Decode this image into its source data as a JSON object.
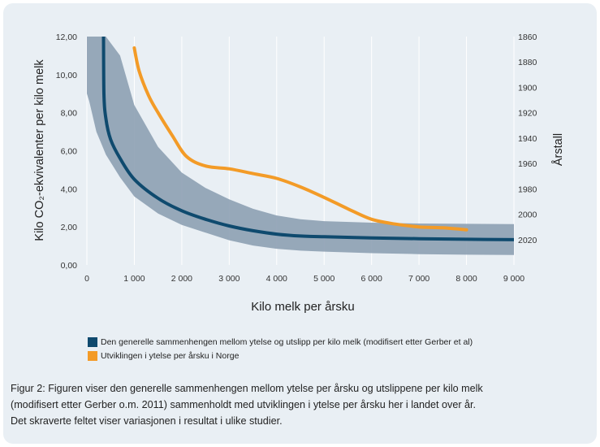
{
  "colors": {
    "band": "#8da0b2",
    "general_curve": "#0f4a6e",
    "norway_curve": "#f39b27",
    "background": "#e9eff4"
  },
  "chart_data": {
    "type": "line",
    "xlabel": "Kilo melk per årsku",
    "ylabel": "Kilo CO₂-ekvivalenter per kilo melk",
    "y2label": "Årstall",
    "xlim": [
      0,
      9000
    ],
    "ylim": [
      0,
      12
    ],
    "y2lim": [
      1860,
      2040
    ],
    "y2_reversed": true,
    "grid": "vertical",
    "x_ticks": [
      "0",
      "1 000",
      "2 000",
      "3 000",
      "4 000",
      "5 000",
      "6 000",
      "7 000",
      "8 000",
      "9 000"
    ],
    "y_ticks": [
      "0,00",
      "2,00",
      "4,00",
      "6,00",
      "8,00",
      "10,00",
      "12,00"
    ],
    "y2_ticks": [
      "1860",
      "1880",
      "1900",
      "1920",
      "1940",
      "1960",
      "1980",
      "2000",
      "2020"
    ],
    "series": [
      {
        "name": "Den generelle sammenhengen mellom ytelse og utslipp per kilo melk (modifisert etter Gerber et al)",
        "x": [
          350,
          360,
          400,
          500,
          700,
          1000,
          1500,
          2000,
          2500,
          3000,
          3500,
          4000,
          4500,
          5000,
          6000,
          7000,
          8000,
          9000
        ],
        "y": [
          12.0,
          9.0,
          7.7,
          6.6,
          5.6,
          4.5,
          3.5,
          2.85,
          2.4,
          2.05,
          1.8,
          1.62,
          1.52,
          1.48,
          1.42,
          1.38,
          1.35,
          1.33
        ]
      },
      {
        "name": "Utviklingen i ytelse per årsku i Norge",
        "x": [
          1000,
          1100,
          1300,
          1500,
          1800,
          2100,
          2500,
          3000,
          3500,
          4000,
          4500,
          5000,
          5500,
          6000,
          6500,
          7000,
          7500,
          8000
        ],
        "y": [
          11.4,
          10.2,
          8.9,
          8.0,
          6.8,
          5.7,
          5.2,
          5.05,
          4.8,
          4.55,
          4.1,
          3.55,
          2.95,
          2.4,
          2.15,
          2.0,
          1.95,
          1.85
        ]
      }
    ],
    "band": {
      "x": [
        0,
        50,
        200,
        400,
        700,
        1000,
        1500,
        2000,
        2500,
        3000,
        3500,
        4000,
        4500,
        5000,
        6000,
        7000,
        8000,
        9000
      ],
      "upper": [
        12.0,
        12.0,
        12.0,
        12.0,
        11.0,
        8.4,
        6.2,
        4.85,
        4.05,
        3.45,
        2.95,
        2.6,
        2.4,
        2.3,
        2.22,
        2.18,
        2.16,
        2.15
      ],
      "lower": [
        9.0,
        8.6,
        7.0,
        5.8,
        4.6,
        3.6,
        2.7,
        2.1,
        1.7,
        1.3,
        1.02,
        0.85,
        0.75,
        0.7,
        0.62,
        0.57,
        0.54,
        0.52
      ]
    },
    "legend": [
      {
        "label": "Den generelle sammenhengen mellom ytelse og utslipp per kilo melk (modifisert etter Gerber et al)",
        "color": "#0f4a6e"
      },
      {
        "label": "Utviklingen i ytelse per årsku i Norge",
        "color": "#f39b27"
      }
    ],
    "legend_position": "bottom-left"
  },
  "caption": [
    "Figur 2: Figuren viser den generelle sammenhengen mellom ytelse per årsku og utslippene per kilo melk",
    "(modifisert etter Gerber o.m. 2011) sammenholdt med utviklingen i ytelse per årsku her i landet over år.",
    "Det skraverte feltet viser variasjonen i resultat i ulike studier."
  ]
}
